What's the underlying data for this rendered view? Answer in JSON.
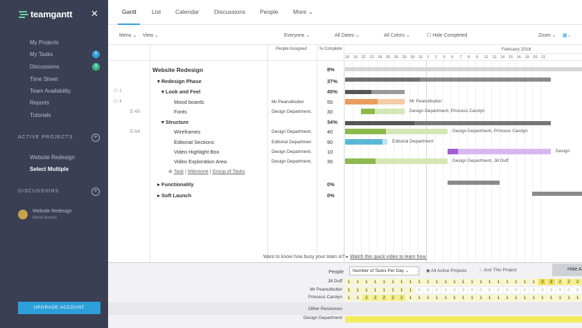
{
  "sidebar": {
    "logo": "teamgantt",
    "items": [
      {
        "label": "My Projects"
      },
      {
        "label": "My Tasks",
        "badge": "6"
      },
      {
        "label": "Discussions",
        "badge": "9"
      },
      {
        "label": "Time Sheet"
      },
      {
        "label": "Team Availability"
      },
      {
        "label": "Reports"
      },
      {
        "label": "Tutorials"
      }
    ],
    "active_projects_label": "ACTIVE PROJECTS",
    "projects": [
      "Website Redesign",
      "Select Multiple"
    ],
    "discussions_label": "DISCUSSIONS",
    "discussion": {
      "title": "Website Redesign",
      "sub": "Mood boards"
    },
    "upgrade": "UPGRADE ACCOUNT"
  },
  "tabs": [
    "Gantt",
    "List",
    "Calendar",
    "Discussions",
    "People",
    "More"
  ],
  "toolbar": {
    "menu": "Menu",
    "view": "View",
    "everyone": "Everyone",
    "dates": "All Dates",
    "colors": "All Colors",
    "hide_completed": "Hide Completed",
    "zoom": "Zoom"
  },
  "headers": {
    "people": "People Assigned",
    "pct": "% Complete",
    "month": "February 2018"
  },
  "days": [
    "18",
    "19",
    "22",
    "23",
    "24",
    "25",
    "26",
    "29",
    "30",
    "31",
    "1",
    "2",
    "5",
    "6",
    "7",
    "8",
    "9",
    "12",
    "13",
    "14",
    "15",
    "16",
    "19",
    "20",
    "21"
  ],
  "rows": [
    {
      "name": "Website Redesign",
      "pct": "8%",
      "people": ""
    },
    {
      "name": "Redesign Phase",
      "pct": "37%",
      "people": "",
      "side": "1"
    },
    {
      "name": "Look and Feel",
      "pct": "45%",
      "people": "",
      "side": "4"
    },
    {
      "name": "Mood boards",
      "pct": "55",
      "people": "Mr Peanutbutter",
      "bar_label": "Mr Peanutbutter"
    },
    {
      "name": "Fonts",
      "pct": "30",
      "people": "Design Department,",
      "side": "4/5",
      "bar_label": "Design Department, Princess Carolyn"
    },
    {
      "name": "Structure",
      "pct": "34%",
      "people": ""
    },
    {
      "name": "Wireframes",
      "pct": "40",
      "people": "Design Department,",
      "side": "6/9",
      "bar_label": "Design Department, Princess Carolyn"
    },
    {
      "name": "Editorial Sections",
      "pct": "90",
      "people": "Editorial Departmen",
      "bar_label": "Editorial Department"
    },
    {
      "name": "Video Highlight Box",
      "pct": "10",
      "people": "Design Department,",
      "bar_label": "Design"
    },
    {
      "name": "Video Exploration Area",
      "pct": "30",
      "people": "Design Department,",
      "bar_label": "Design Department, Jill Duff"
    },
    {
      "name": "Functionality",
      "pct": "0%",
      "people": ""
    },
    {
      "name": "Soft Launch",
      "pct": "0%",
      "people": ""
    }
  ],
  "add_links": [
    "Task",
    "Milestone",
    "Group of Tasks"
  ],
  "promo": {
    "text": "Want to know how busy your team is?",
    "link": "Watch this quick video to learn how."
  },
  "workload": {
    "people_label": "People",
    "dropdown": "Number of Tasks Per Day",
    "radio1": "All Active Projects",
    "radio2": "Just This Project",
    "hide": "Hide A",
    "people": [
      {
        "name": "Jill Duff",
        "cells": [
          "1",
          "1",
          "1",
          "1",
          "1",
          "1",
          "1",
          "1",
          "1",
          "1",
          "1",
          "1",
          "1",
          "1",
          "1",
          "1",
          "1",
          "1",
          "1",
          "1",
          "1",
          "1",
          "3",
          "3",
          "2",
          "2",
          "2"
        ]
      },
      {
        "name": "Mr Peanutbutter",
        "cells": [
          "1",
          "1",
          "1",
          "1",
          "1",
          "1",
          "1",
          "1",
          "0",
          "0",
          "0",
          "0",
          "0",
          "0",
          "0",
          "0",
          "0",
          "0",
          "0",
          "0",
          "0",
          "0",
          "0",
          "0",
          "0",
          "0",
          "0"
        ]
      },
      {
        "name": "Princess Carolyn",
        "cells": [
          "1",
          "1",
          "2",
          "2",
          "2",
          "2",
          "2",
          "1",
          "1",
          "1",
          "1",
          "1",
          "1",
          "1",
          "1",
          "1",
          "1",
          "1",
          "1",
          "1",
          "1",
          "1",
          "1",
          "1",
          "1",
          "1",
          "1"
        ]
      }
    ],
    "other_label": "Other Resources",
    "dept": "Design Department"
  },
  "colors": {
    "accent": "#2d9fd8",
    "sidebar": "#3a3f54",
    "orange": "#e89b5c",
    "green": "#8db94d",
    "blue": "#5bb7d6",
    "purple": "#a05ed3",
    "gray": "#6f6f6f",
    "yellow": "#f3ec5a"
  }
}
